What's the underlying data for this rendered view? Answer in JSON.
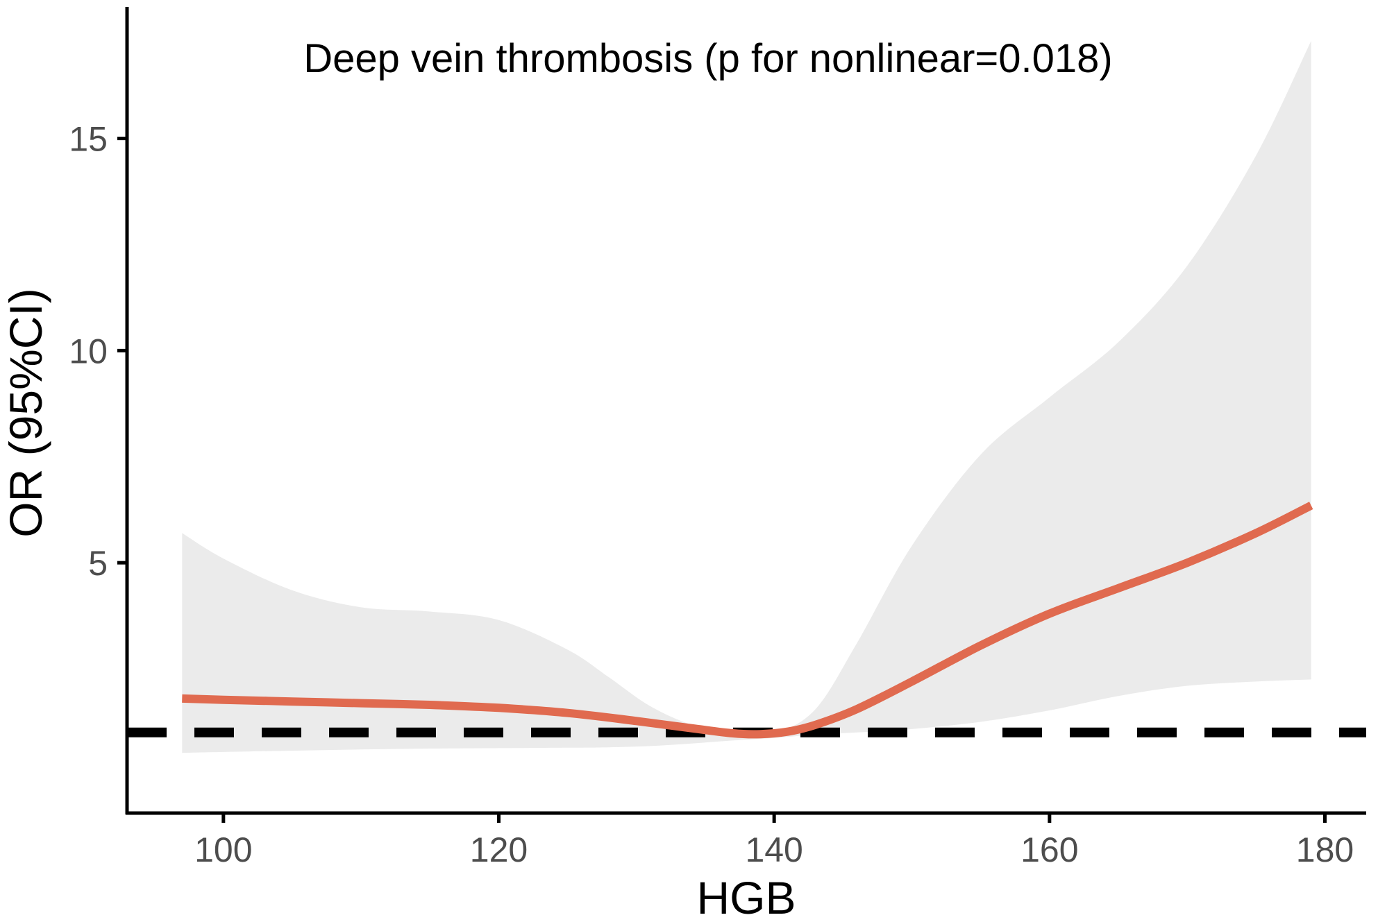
{
  "chart_data": {
    "type": "line",
    "title": "Deep vein thrombosis (p for nonlinear=0.018)",
    "xlabel": "HGB",
    "ylabel": "OR (95%CI)",
    "xlim": [
      93,
      183
    ],
    "ylim": [
      -0.9,
      18.1
    ],
    "x_ticks": [
      100,
      120,
      140,
      160,
      180
    ],
    "y_ticks": [
      5,
      10,
      15
    ],
    "reference_line": {
      "y": 1,
      "style": "dashed",
      "color": "#000000"
    },
    "grid": false,
    "legend": "none",
    "series": [
      {
        "color": "#e06a4f",
        "x": [
          97,
          100,
          105,
          110,
          115,
          120,
          125,
          130,
          134,
          137,
          139,
          141,
          143,
          146,
          150,
          155,
          160,
          165,
          170,
          175,
          179
        ],
        "y": [
          1.8,
          1.77,
          1.73,
          1.69,
          1.65,
          1.58,
          1.46,
          1.27,
          1.1,
          0.98,
          0.96,
          1.02,
          1.18,
          1.55,
          2.2,
          3.05,
          3.8,
          4.4,
          5.0,
          5.7,
          6.35
        ]
      }
    ],
    "confidence_band": {
      "color": "#ebebeb",
      "x": [
        97,
        100,
        105,
        110,
        115,
        120,
        125,
        128,
        131,
        134,
        137,
        140,
        143,
        146,
        150,
        155,
        160,
        165,
        170,
        175,
        179
      ],
      "lower": [
        0.52,
        0.54,
        0.57,
        0.6,
        0.62,
        0.63,
        0.64,
        0.65,
        0.68,
        0.74,
        0.81,
        0.87,
        0.95,
        1.0,
        1.08,
        1.25,
        1.52,
        1.86,
        2.1,
        2.2,
        2.25
      ],
      "upper": [
        5.7,
        5.1,
        4.35,
        3.95,
        3.85,
        3.65,
        2.95,
        2.3,
        1.62,
        1.18,
        0.95,
        0.98,
        1.55,
        3.1,
        5.4,
        7.55,
        8.9,
        10.2,
        12.0,
        14.6,
        17.3
      ]
    }
  }
}
